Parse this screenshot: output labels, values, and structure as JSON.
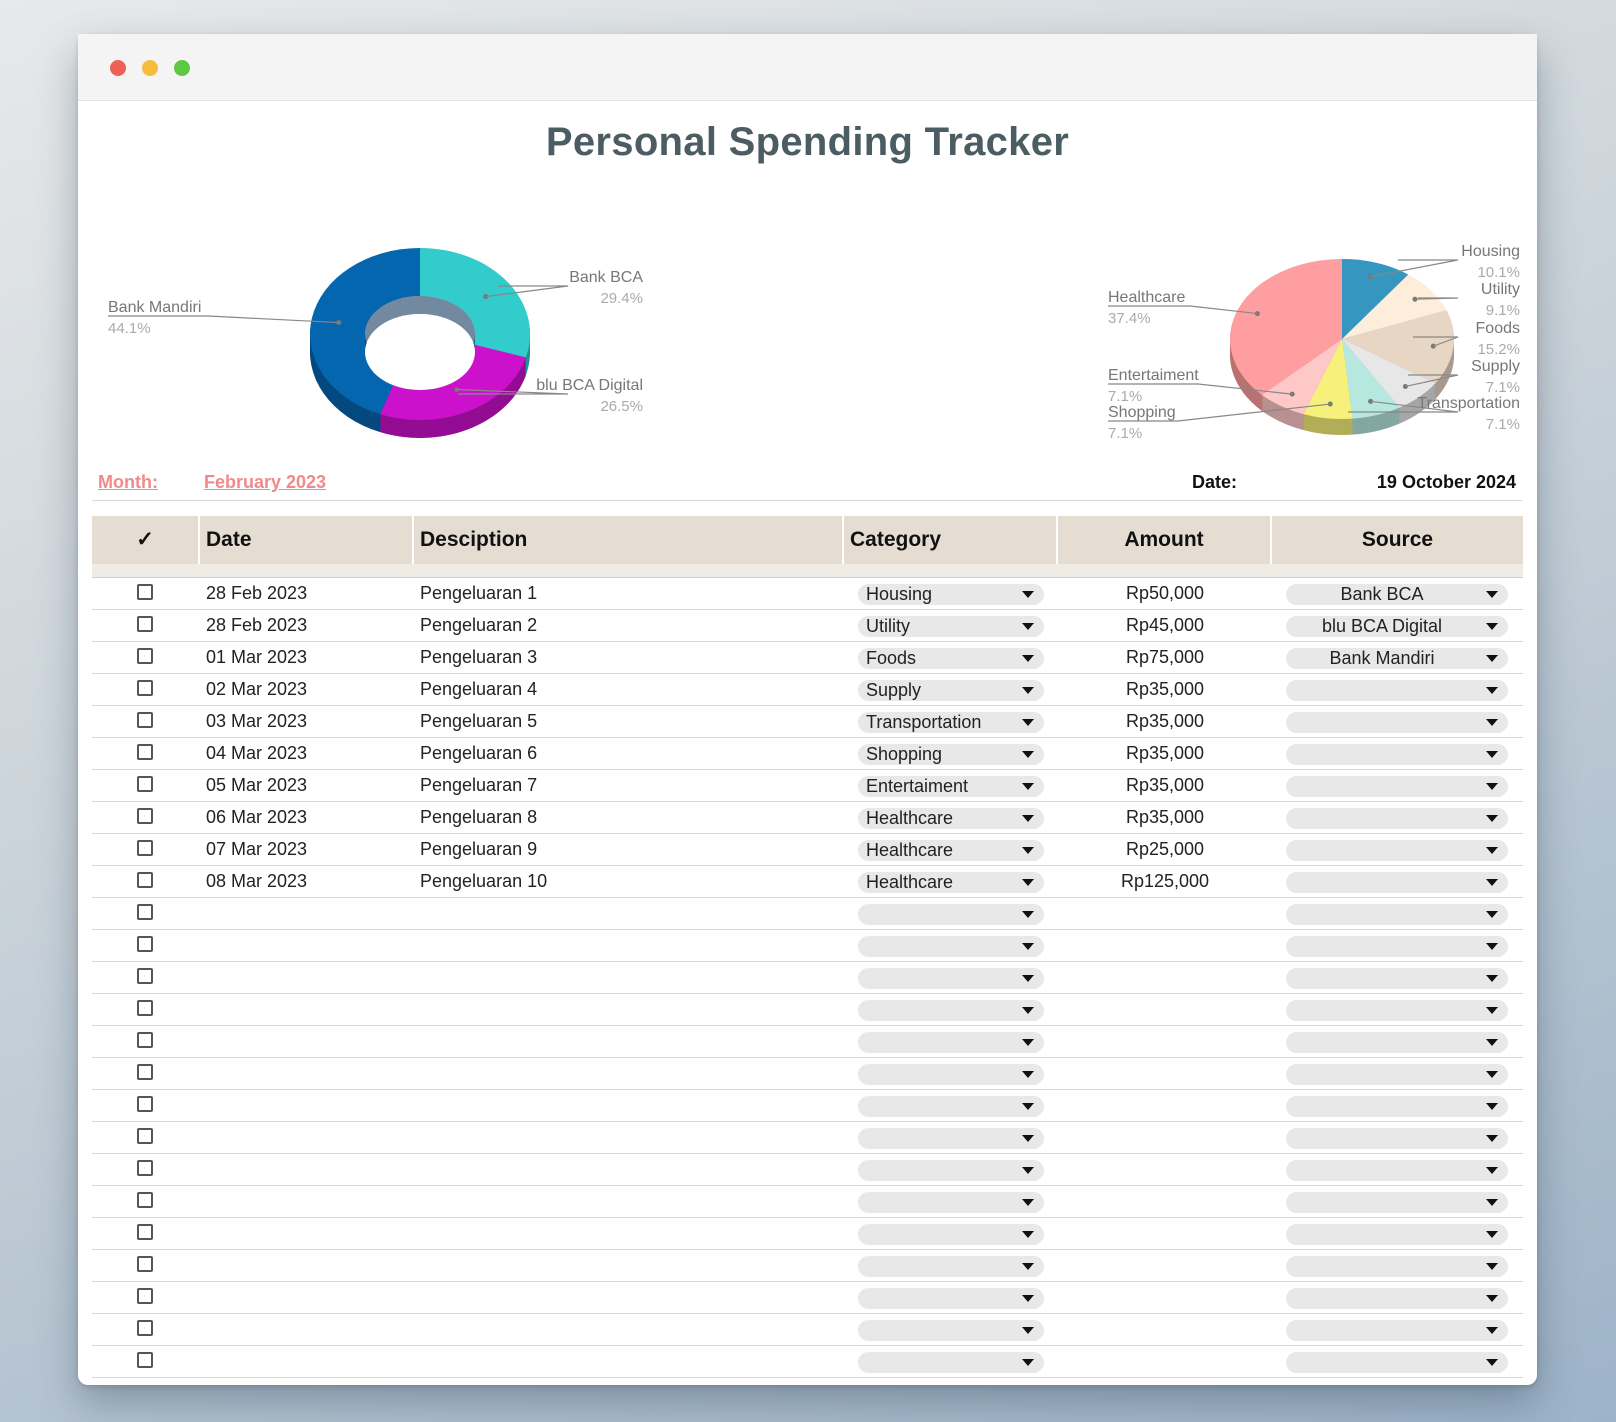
{
  "title": "Personal Spending Tracker",
  "meta": {
    "month_label": "Month:",
    "month_value": "February 2023",
    "date_label": "Date:",
    "date_value": "19 October 2024"
  },
  "table": {
    "headers": {
      "check": "✓",
      "date": "Date",
      "description": "Desciption",
      "category": "Category",
      "amount": "Amount",
      "source": "Source"
    },
    "rows": [
      {
        "date": "28 Feb 2023",
        "description": "Pengeluaran 1",
        "category": "Housing",
        "amount": "Rp50,000",
        "source": "Bank BCA"
      },
      {
        "date": "28 Feb 2023",
        "description": "Pengeluaran 2",
        "category": "Utility",
        "amount": "Rp45,000",
        "source": "blu BCA Digital"
      },
      {
        "date": "01 Mar 2023",
        "description": "Pengeluaran 3",
        "category": "Foods",
        "amount": "Rp75,000",
        "source": "Bank Mandiri"
      },
      {
        "date": "02 Mar 2023",
        "description": "Pengeluaran 4",
        "category": "Supply",
        "amount": "Rp35,000",
        "source": ""
      },
      {
        "date": "03 Mar 2023",
        "description": "Pengeluaran 5",
        "category": "Transportation",
        "amount": "Rp35,000",
        "source": ""
      },
      {
        "date": "04 Mar 2023",
        "description": "Pengeluaran 6",
        "category": "Shopping",
        "amount": "Rp35,000",
        "source": ""
      },
      {
        "date": "05 Mar 2023",
        "description": "Pengeluaran 7",
        "category": "Entertaiment",
        "amount": "Rp35,000",
        "source": ""
      },
      {
        "date": "06 Mar 2023",
        "description": "Pengeluaran 8",
        "category": "Healthcare",
        "amount": "Rp35,000",
        "source": ""
      },
      {
        "date": "07 Mar 2023",
        "description": "Pengeluaran 9",
        "category": "Healthcare",
        "amount": "Rp25,000",
        "source": ""
      },
      {
        "date": "08 Mar 2023",
        "description": "Pengeluaran 10",
        "category": "Healthcare",
        "amount": "Rp125,000",
        "source": ""
      },
      {
        "date": "",
        "description": "",
        "category": "",
        "amount": "",
        "source": ""
      },
      {
        "date": "",
        "description": "",
        "category": "",
        "amount": "",
        "source": ""
      },
      {
        "date": "",
        "description": "",
        "category": "",
        "amount": "",
        "source": ""
      },
      {
        "date": "",
        "description": "",
        "category": "",
        "amount": "",
        "source": ""
      },
      {
        "date": "",
        "description": "",
        "category": "",
        "amount": "",
        "source": ""
      },
      {
        "date": "",
        "description": "",
        "category": "",
        "amount": "",
        "source": ""
      },
      {
        "date": "",
        "description": "",
        "category": "",
        "amount": "",
        "source": ""
      },
      {
        "date": "",
        "description": "",
        "category": "",
        "amount": "",
        "source": ""
      },
      {
        "date": "",
        "description": "",
        "category": "",
        "amount": "",
        "source": ""
      },
      {
        "date": "",
        "description": "",
        "category": "",
        "amount": "",
        "source": ""
      },
      {
        "date": "",
        "description": "",
        "category": "",
        "amount": "",
        "source": ""
      },
      {
        "date": "",
        "description": "",
        "category": "",
        "amount": "",
        "source": ""
      },
      {
        "date": "",
        "description": "",
        "category": "",
        "amount": "",
        "source": ""
      },
      {
        "date": "",
        "description": "",
        "category": "",
        "amount": "",
        "source": ""
      },
      {
        "date": "",
        "description": "",
        "category": "",
        "amount": "",
        "source": ""
      }
    ]
  },
  "chart_data": [
    {
      "type": "pie",
      "style": "donut-3d",
      "series": [
        {
          "name": "Bank BCA",
          "label": "29.4%",
          "value": 29.4,
          "color": "#33cccc"
        },
        {
          "name": "blu BCA Digital",
          "label": "26.5%",
          "value": 26.5,
          "color": "#cc11cc"
        },
        {
          "name": "Bank Mandiri",
          "label": "44.1%",
          "value": 44.1,
          "color": "#0566b0"
        }
      ]
    },
    {
      "type": "pie",
      "style": "pie-3d",
      "series": [
        {
          "name": "Housing",
          "label": "10.1%",
          "value": 10.1,
          "color": "#3596bf"
        },
        {
          "name": "Utility",
          "label": "9.1%",
          "value": 9.1,
          "color": "#fdeedc"
        },
        {
          "name": "Foods",
          "label": "15.2%",
          "value": 15.2,
          "color": "#e8d6c5"
        },
        {
          "name": "Supply",
          "label": "7.1%",
          "value": 7.1,
          "color": "#e7e7e7"
        },
        {
          "name": "Transportation",
          "label": "7.1%",
          "value": 7.1,
          "color": "#b6e8e0"
        },
        {
          "name": "Shopping",
          "label": "7.1%",
          "value": 7.1,
          "color": "#f7f07a"
        },
        {
          "name": "Entertaiment",
          "label": "7.1%",
          "value": 7.1,
          "color": "#ffc8c8"
        },
        {
          "name": "Healthcare",
          "label": "37.4%",
          "value": 37.4,
          "color": "#ff9ea0"
        }
      ]
    }
  ]
}
